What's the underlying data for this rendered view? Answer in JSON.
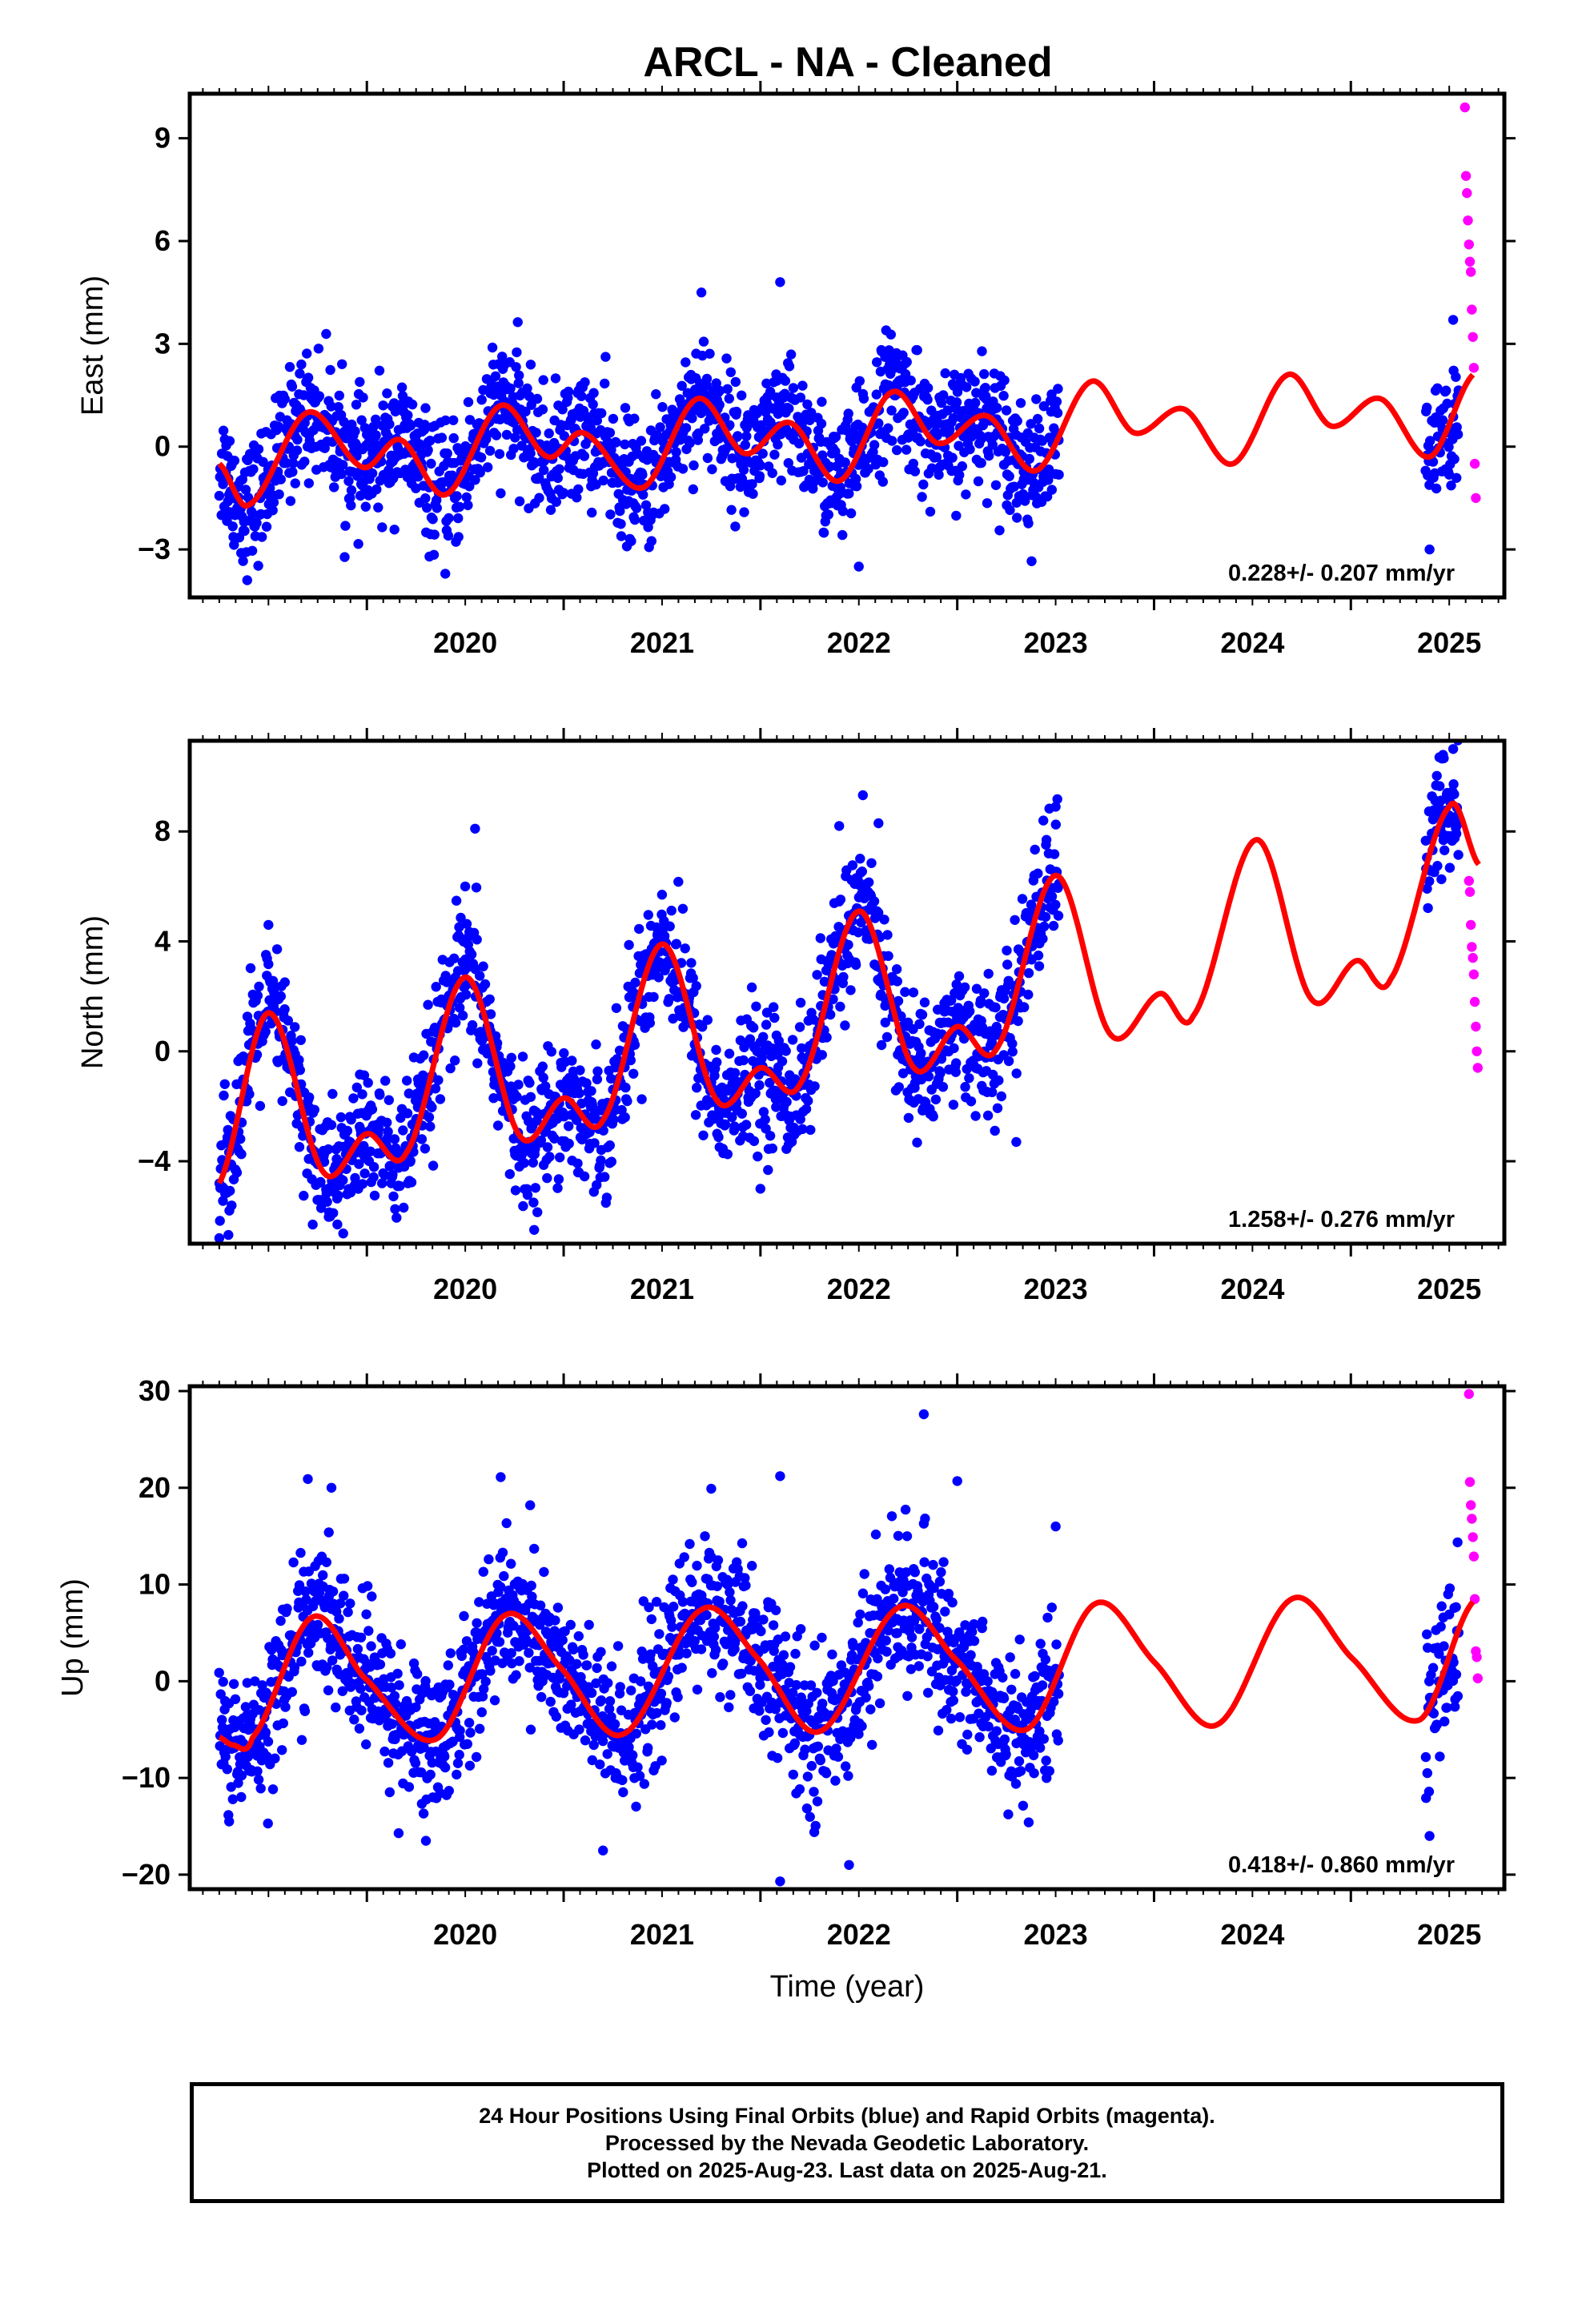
{
  "title": "ARCL  - NA - Cleaned",
  "colors": {
    "final_orbits": "#0000ff",
    "rapid_orbits": "#ff00ff",
    "model_fit": "#ff0000",
    "frame": "#000000"
  },
  "chart_data": [
    {
      "type": "scatter",
      "panel": "east",
      "ylabel": "East (mm)",
      "xlabel": "",
      "xlim": [
        2019.1,
        2025.78
      ],
      "ylim": [
        -4.4,
        10.3
      ],
      "yticks": [
        -3,
        0,
        3,
        6,
        9
      ],
      "xticks": [
        2020,
        2021,
        2022,
        2023,
        2024,
        2025
      ],
      "velocity_label": "0.228+/- 0.207 mm/yr",
      "final_orbits": {
        "span": [
          2019.25,
          2023.52,
          2025.38,
          2025.55
        ],
        "noise_sd": 0.9,
        "example_values": [
          [
            2019.3,
            -1.4
          ],
          [
            2019.7,
            0.9
          ],
          [
            2020.0,
            -0.5
          ],
          [
            2020.7,
            1.2
          ],
          [
            2021.3,
            -1.0
          ],
          [
            2021.7,
            1.6
          ],
          [
            2021.7,
            4.5
          ],
          [
            2022.1,
            4.8
          ],
          [
            2022.5,
            -3.5
          ],
          [
            2022.7,
            1.6
          ],
          [
            2023.2,
            0.8
          ],
          [
            2023.5,
            -0.8
          ],
          [
            2025.4,
            -3.0
          ],
          [
            2025.52,
            3.7
          ]
        ]
      },
      "rapid_orbits": [
        [
          2025.58,
          9.9
        ],
        [
          2025.585,
          7.9
        ],
        [
          2025.59,
          7.4
        ],
        [
          2025.595,
          6.6
        ],
        [
          2025.6,
          5.9
        ],
        [
          2025.605,
          5.4
        ],
        [
          2025.61,
          5.1
        ],
        [
          2025.615,
          4.0
        ],
        [
          2025.62,
          3.2
        ],
        [
          2025.625,
          2.3
        ],
        [
          2025.63,
          -0.5
        ],
        [
          2025.635,
          -1.5
        ]
      ],
      "model": [
        [
          2019.25,
          -0.5
        ],
        [
          2019.4,
          -1.7
        ],
        [
          2019.7,
          1.0
        ],
        [
          2019.98,
          -0.6
        ],
        [
          2020.17,
          0.2
        ],
        [
          2020.4,
          -1.4
        ],
        [
          2020.68,
          1.2
        ],
        [
          2020.92,
          -0.3
        ],
        [
          2021.1,
          0.4
        ],
        [
          2021.4,
          -1.2
        ],
        [
          2021.68,
          1.4
        ],
        [
          2021.92,
          -0.2
        ],
        [
          2022.15,
          0.7
        ],
        [
          2022.4,
          -1.0
        ],
        [
          2022.67,
          1.6
        ],
        [
          2022.9,
          0.1
        ],
        [
          2023.15,
          0.9
        ],
        [
          2023.4,
          -0.7
        ],
        [
          2023.68,
          1.9
        ],
        [
          2023.9,
          0.4
        ],
        [
          2024.15,
          1.1
        ],
        [
          2024.4,
          -0.5
        ],
        [
          2024.68,
          2.1
        ],
        [
          2024.9,
          0.6
        ],
        [
          2025.15,
          1.4
        ],
        [
          2025.4,
          -0.3
        ],
        [
          2025.62,
          2.1
        ]
      ]
    },
    {
      "type": "scatter",
      "panel": "north",
      "ylabel": "North (mm)",
      "xlabel": "",
      "xlim": [
        2019.1,
        2025.78
      ],
      "ylim": [
        -7.0,
        11.3
      ],
      "yticks": [
        -4,
        0,
        4,
        8
      ],
      "xticks": [
        2020,
        2021,
        2022,
        2023,
        2024,
        2025
      ],
      "velocity_label": "1.258+/- 0.276 mm/yr",
      "final_orbits": {
        "span": [
          2019.25,
          2023.52,
          2025.38,
          2025.55
        ],
        "noise_sd": 1.2,
        "example_values": [
          [
            2019.25,
            -6.8
          ],
          [
            2019.5,
            4.6
          ],
          [
            2019.85,
            -6.3
          ],
          [
            2020.5,
            6.0
          ],
          [
            2020.55,
            8.1
          ],
          [
            2020.85,
            -6.5
          ],
          [
            2021.5,
            5.7
          ],
          [
            2022.0,
            -5.0
          ],
          [
            2022.4,
            8.2
          ],
          [
            2022.6,
            8.3
          ],
          [
            2023.3,
            -3.3
          ],
          [
            2023.5,
            8.9
          ],
          [
            2025.45,
            10.7
          ],
          [
            2025.52,
            11.0
          ]
        ]
      },
      "rapid_orbits": [
        [
          2025.6,
          6.2
        ],
        [
          2025.605,
          5.8
        ],
        [
          2025.61,
          4.6
        ],
        [
          2025.615,
          3.8
        ],
        [
          2025.62,
          3.4
        ],
        [
          2025.625,
          2.8
        ],
        [
          2025.63,
          1.8
        ],
        [
          2025.635,
          0.9
        ],
        [
          2025.64,
          0.0
        ],
        [
          2025.645,
          -0.6
        ]
      ],
      "model": [
        [
          2019.25,
          -4.8
        ],
        [
          2019.5,
          1.4
        ],
        [
          2019.78,
          -4.4
        ],
        [
          2020.0,
          -3.0
        ],
        [
          2020.2,
          -3.7
        ],
        [
          2020.5,
          2.7
        ],
        [
          2020.78,
          -3.1
        ],
        [
          2021.0,
          -1.7
        ],
        [
          2021.2,
          -2.5
        ],
        [
          2021.5,
          3.9
        ],
        [
          2021.78,
          -1.8
        ],
        [
          2022.0,
          -0.6
        ],
        [
          2022.2,
          -1.2
        ],
        [
          2022.5,
          5.1
        ],
        [
          2022.78,
          -0.6
        ],
        [
          2023.0,
          0.9
        ],
        [
          2023.2,
          0.1
        ],
        [
          2023.5,
          6.4
        ],
        [
          2023.78,
          0.6
        ],
        [
          2024.03,
          2.1
        ],
        [
          2024.2,
          1.3
        ],
        [
          2024.52,
          7.7
        ],
        [
          2024.8,
          1.9
        ],
        [
          2025.03,
          3.3
        ],
        [
          2025.2,
          2.6
        ],
        [
          2025.5,
          8.9
        ],
        [
          2025.65,
          6.8
        ]
      ]
    },
    {
      "type": "scatter",
      "panel": "up",
      "ylabel": "Up (mm)",
      "xlabel": "Time (year)",
      "xlim": [
        2019.1,
        2025.78
      ],
      "ylim": [
        -21.5,
        30.5
      ],
      "yticks": [
        -20,
        -10,
        0,
        10,
        20,
        30
      ],
      "xticks": [
        2020,
        2021,
        2022,
        2023,
        2024,
        2025
      ],
      "velocity_label": "0.418+/- 0.860 mm/yr",
      "final_orbits": {
        "span": [
          2019.25,
          2023.52,
          2025.38,
          2025.55
        ],
        "noise_sd": 3.8,
        "example_values": [
          [
            2019.3,
            -14.5
          ],
          [
            2019.7,
            20.9
          ],
          [
            2020.3,
            -16.5
          ],
          [
            2020.68,
            21.1
          ],
          [
            2021.2,
            -17.5
          ],
          [
            2021.75,
            19.9
          ],
          [
            2022.1,
            -20.7
          ],
          [
            2022.1,
            21.2
          ],
          [
            2022.45,
            -19.0
          ],
          [
            2022.83,
            27.6
          ],
          [
            2023.0,
            20.7
          ],
          [
            2023.5,
            16.0
          ],
          [
            2025.4,
            -16.0
          ],
          [
            2025.5,
            6.9
          ]
        ]
      },
      "rapid_orbits": [
        [
          2025.6,
          29.7
        ],
        [
          2025.605,
          20.6
        ],
        [
          2025.61,
          18.2
        ],
        [
          2025.615,
          16.8
        ],
        [
          2025.62,
          14.9
        ],
        [
          2025.625,
          12.9
        ],
        [
          2025.63,
          8.5
        ],
        [
          2025.635,
          3.1
        ],
        [
          2025.64,
          2.5
        ],
        [
          2025.645,
          0.3
        ]
      ],
      "model": [
        [
          2019.25,
          -5.8
        ],
        [
          2019.32,
          -6.6
        ],
        [
          2019.42,
          -5.8
        ],
        [
          2019.72,
          6.6
        ],
        [
          2019.98,
          0.5
        ],
        [
          2020.35,
          -6.0
        ],
        [
          2020.7,
          6.8
        ],
        [
          2020.98,
          1.5
        ],
        [
          2021.3,
          -5.5
        ],
        [
          2021.7,
          7.4
        ],
        [
          2021.98,
          2.5
        ],
        [
          2022.3,
          -5.2
        ],
        [
          2022.7,
          7.6
        ],
        [
          2022.98,
          2.5
        ],
        [
          2023.35,
          -5.0
        ],
        [
          2023.7,
          8.0
        ],
        [
          2024.0,
          2.0
        ],
        [
          2024.32,
          -4.5
        ],
        [
          2024.7,
          8.5
        ],
        [
          2025.0,
          2.5
        ],
        [
          2025.35,
          -4.0
        ],
        [
          2025.62,
          8.2
        ]
      ]
    }
  ],
  "footer": {
    "line1": "24 Hour Positions Using Final Orbits (blue) and Rapid Orbits (magenta).",
    "line2": "Processed by the Nevada Geodetic Laboratory.",
    "line3": "Plotted on 2025-Aug-23. Last data on 2025-Aug-21."
  }
}
